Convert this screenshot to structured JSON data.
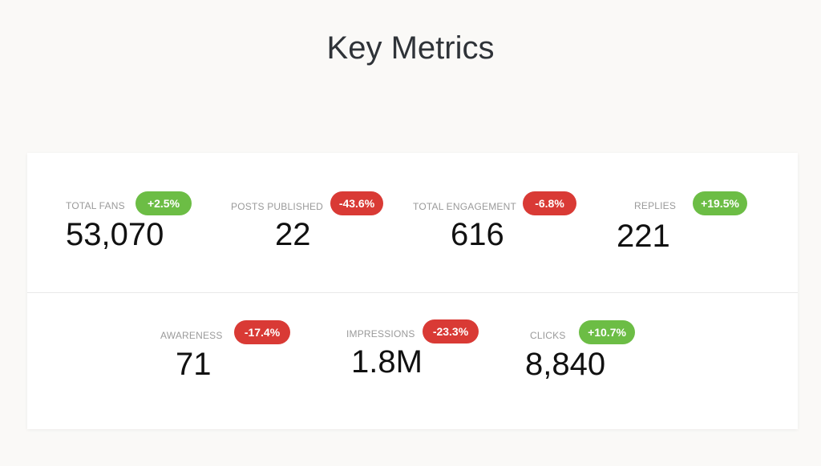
{
  "page": {
    "title": "Key Metrics"
  },
  "colors": {
    "positive": "#6cbd45",
    "negative": "#d93a35"
  },
  "metrics": [
    {
      "label": "TOTAL FANS",
      "value": "53,070",
      "change": "+2.5%"
    },
    {
      "label": "POSTS PUBLISHED",
      "value": "22",
      "change": "-43.6%"
    },
    {
      "label": "TOTAL ENGAGEMENT",
      "value": "616",
      "change": "-6.8%"
    },
    {
      "label": "REPLIES",
      "value": "221",
      "change": "+19.5%"
    },
    {
      "label": "AWARENESS",
      "value": "71",
      "change": "-17.4%"
    },
    {
      "label": "IMPRESSIONS",
      "value": "1.8M",
      "change": "-23.3%"
    },
    {
      "label": "CLICKS",
      "value": "8,840",
      "change": "+10.7%"
    }
  ]
}
